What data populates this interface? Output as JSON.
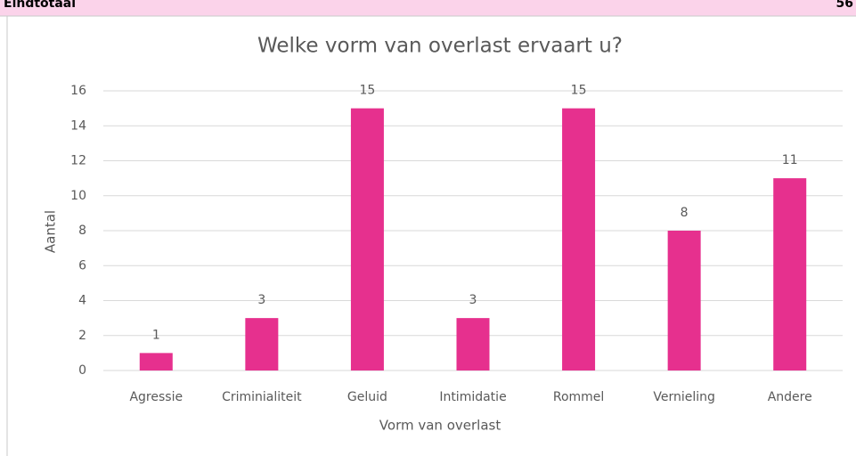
{
  "header": {
    "label": "Eindtotaal",
    "total": "56"
  },
  "chart_data": {
    "type": "bar",
    "title": "Welke vorm van overlast ervaart u?",
    "x_label": "Vorm van overlast",
    "y_label": "Aantal",
    "categories": [
      "Agressie",
      "Criminialiteit",
      "Geluid",
      "Intimidatie",
      "Rommel",
      "Vernieling",
      "Andere"
    ],
    "values": [
      1,
      3,
      15,
      3,
      15,
      8,
      11
    ],
    "color": "#e6308e",
    "ylim": [
      0,
      16
    ],
    "yticks": [
      0,
      2,
      4,
      6,
      8,
      10,
      12,
      14,
      16
    ],
    "grid": true
  }
}
